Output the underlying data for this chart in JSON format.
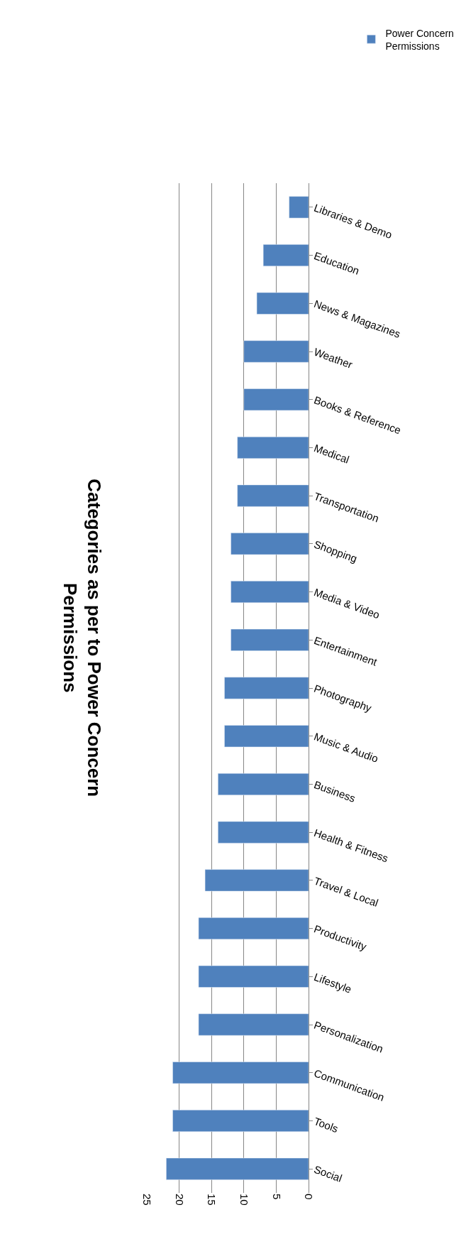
{
  "chart_data": {
    "type": "bar",
    "orientation": "horizontal",
    "title": "Categories as per to Power Concern Permissions",
    "categories": [
      "Libraries & Demo",
      "Education",
      "News & Magazines",
      "Weather",
      "Books & Reference",
      "Medical",
      "Transportation",
      "Shopping",
      "Media & Video",
      "Entertainment",
      "Photography",
      "Music & Audio",
      "Business",
      "Health & Fitness",
      "Travel & Local",
      "Productivity",
      "Lifestyle",
      "Personalization",
      "Communication",
      "Tools",
      "Social"
    ],
    "series": [
      {
        "name": "Power Concern Permissions",
        "color": "#4f81bd",
        "values": [
          3,
          7,
          8,
          10,
          10,
          11,
          11,
          12,
          12,
          12,
          13,
          13,
          14,
          14,
          16,
          17,
          17,
          17,
          21,
          21,
          22
        ]
      }
    ],
    "xlim": [
      25,
      0
    ],
    "xticks": [
      25,
      20,
      15,
      10,
      5,
      0
    ],
    "grid": "x",
    "legend": "top right"
  }
}
